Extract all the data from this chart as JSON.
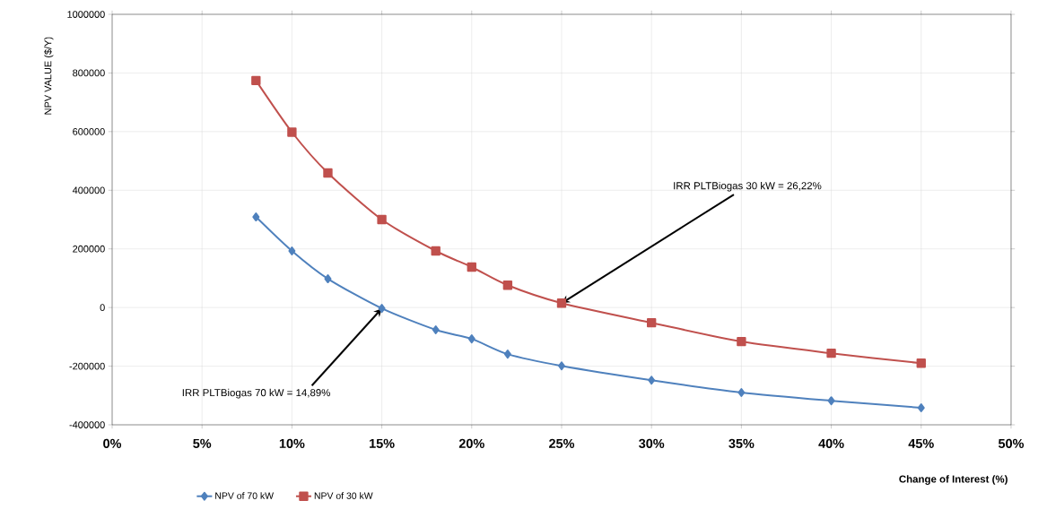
{
  "chart_data": {
    "type": "line",
    "xlabel": "Change of Interest (%)",
    "ylabel": "NPV VALUE  ($/Y)",
    "x": [
      8,
      10,
      12,
      15,
      18,
      20,
      22,
      25,
      30,
      35,
      40,
      45
    ],
    "series": [
      {
        "name": "NPV of 70 kW",
        "color": "#4f81bd",
        "marker": "diamond",
        "values": [
          309000,
          193000,
          98000,
          -3000,
          -76000,
          -107000,
          -159000,
          -199000,
          -248000,
          -290000,
          -318000,
          -342000
        ]
      },
      {
        "name": "NPV of 30 kW",
        "color": "#c0504d",
        "marker": "square",
        "values": [
          774000,
          598000,
          459000,
          300000,
          193000,
          138000,
          76000,
          15000,
          -52000,
          -116000,
          -156000,
          -190000
        ]
      }
    ],
    "xlim": [
      0,
      50
    ],
    "ylim": [
      -400000,
      1000000
    ],
    "xticks": [
      {
        "value": 0,
        "label": "0%"
      },
      {
        "value": 5,
        "label": "5%"
      },
      {
        "value": 10,
        "label": "10%"
      },
      {
        "value": 15,
        "label": "15%"
      },
      {
        "value": 20,
        "label": "20%"
      },
      {
        "value": 25,
        "label": "25%"
      },
      {
        "value": 30,
        "label": "30%"
      },
      {
        "value": 35,
        "label": "35%"
      },
      {
        "value": 40,
        "label": "40%"
      },
      {
        "value": 45,
        "label": "45%"
      },
      {
        "value": 50,
        "label": "50%"
      }
    ],
    "yticks": [
      -400000,
      -200000,
      0,
      200000,
      400000,
      600000,
      800000,
      1000000
    ],
    "annotations": [
      {
        "text": "IRR PLTBiogas 30 kW = 26,22%",
        "x": 25,
        "y": 15000
      },
      {
        "text": "IRR PLTBiogas 70 kW = 14,89%",
        "x": 15,
        "y": -3000
      }
    ],
    "grid": true,
    "legend": "bottom",
    "line_style": "solid"
  }
}
